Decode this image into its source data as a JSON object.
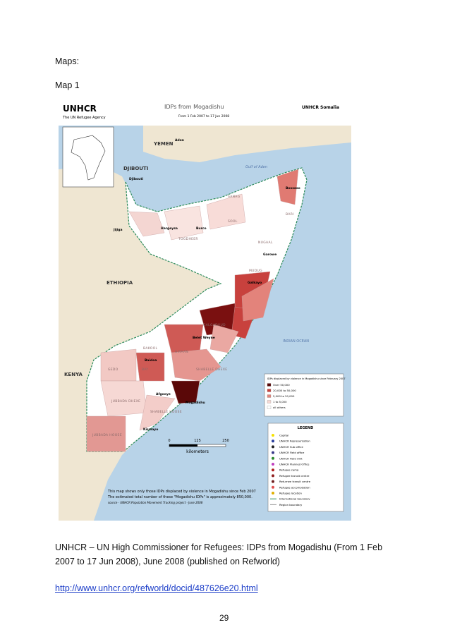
{
  "header": {
    "section": "Maps:",
    "subsection": "Map 1"
  },
  "map": {
    "logo": "UNHCR",
    "agency": "The UN Refugee Agency",
    "title": "IDPs from Mogadishu",
    "date_range": "From 1 Feb 2007 to 17 Jun 2008",
    "office": "UNHCR Somalia",
    "countries": {
      "yemen": "YEMEN",
      "djibouti": "DJIBOUTI",
      "ethiopia": "ETHIOPIA",
      "kenya": "KENYA"
    },
    "seas": {
      "gulf": "Gulf of Aden",
      "ocean": "INDIAN OCEAN"
    },
    "regions": {
      "bari": "BARI",
      "sanag": "SANAG",
      "sool": "SOOL",
      "togdheer": "TOGDHEER",
      "nugaal": "NUGAAL",
      "mudug": "MUDUG",
      "galgaduud": "GALGADUUD",
      "hiraan": "HIRAAN",
      "bakool": "BAKOOL",
      "bay": "BAY",
      "gedo": "GEDO",
      "shabelle_dhexe": "SHABELLE DHEXE",
      "shabelle_hoose": "SHABELLE HOOSE",
      "jubbada_dhexe": "JUBBADA DHEXE",
      "jubbada_hoose": "JUBBADA HOOSE"
    },
    "cities": {
      "aden": "Aden",
      "djibouti": "Djibouti",
      "jijiga": "Jijiga",
      "hargeysa": "Hargeysa",
      "burco": "Burco",
      "bossaso": "Bossaso",
      "garowe": "Garowe",
      "galkayo": "Galkayo",
      "belet_weyne": "Belet Weyne",
      "baidoa": "Baidoa",
      "afgooye": "Afgooye",
      "mogadishu": "Mogadishu",
      "kismayo": "Kismayo"
    },
    "scale": {
      "ticks": [
        "0",
        "125",
        "250"
      ],
      "unit": "kilometers"
    },
    "idp_legend": {
      "title": "IDPs displaced by violence in Mogadishu since February 2007",
      "classes": [
        "Over 50,000",
        "20,000 to 50,000",
        "5,000 to 20,000",
        "1 to 5,000",
        "all others"
      ]
    },
    "legend": {
      "title": "LEGEND",
      "items": [
        "Capital",
        "UNHCR Representation",
        "UNHCR Sub office",
        "UNHCR Field office",
        "UNHCR Field Unit",
        "UNHCR Planned Office",
        "Refugee camp",
        "Refugee transit centre",
        "Returnee transit centre",
        "Refugee accomodation",
        "Refugee location",
        "International boundary",
        "Region boundary"
      ]
    },
    "note": [
      "This map shows only those IDPs displaced by violence in Mogadishu since Feb 2007",
      "The estimated total number of these \"Mogadishu IDPs\" is approximately 850,000.",
      "source - UNHCR Population Movement Tracking project - June 2008"
    ]
  },
  "caption": "UNHCR – UN High Commissioner for Refugees: IDPs from Mogadishu (From 1 Feb 2007 to 17 Jun 2008), June 2008 (published on Refworld)",
  "link": "http://www.unhcr.org/refworld/docid/487626e20.html",
  "page_number": "29"
}
